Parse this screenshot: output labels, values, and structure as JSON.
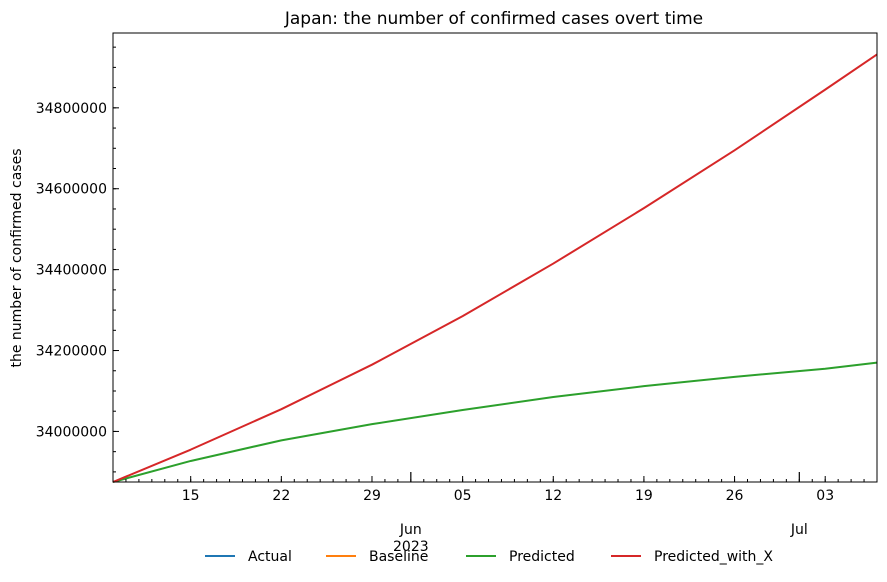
{
  "chart_data": {
    "type": "line",
    "title": "Japan: the number of confirmed cases overt time",
    "xlabel": "",
    "ylabel": "the number of confirmed cases",
    "x_range": [
      "2023-05-09",
      "2023-07-07"
    ],
    "ylim": [
      33875000,
      34985000
    ],
    "x_ticks": [
      {
        "date": "2023-05-15",
        "label": "15"
      },
      {
        "date": "2023-05-22",
        "label": "22"
      },
      {
        "date": "2023-05-29",
        "label": "29"
      },
      {
        "date": "2023-06-05",
        "label": "05"
      },
      {
        "date": "2023-06-12",
        "label": "12"
      },
      {
        "date": "2023-06-19",
        "label": "19"
      },
      {
        "date": "2023-06-26",
        "label": "26"
      },
      {
        "date": "2023-07-03",
        "label": "03"
      }
    ],
    "x_major_labels": [
      {
        "date": "2023-06-01",
        "label": "Jun",
        "sublabel": "2023"
      },
      {
        "date": "2023-07-01",
        "label": "Jul",
        "sublabel": ""
      }
    ],
    "y_ticks": [
      34000000,
      34200000,
      34400000,
      34600000,
      34800000
    ],
    "y_tick_labels": [
      "34000000",
      "34200000",
      "34400000",
      "34600000",
      "34800000"
    ],
    "legend_position": "bottom-center",
    "grid": false,
    "series": [
      {
        "name": "Actual",
        "color": "#1f77b4",
        "x": [],
        "values": []
      },
      {
        "name": "Baseline",
        "color": "#ff7f0e",
        "x": [],
        "values": []
      },
      {
        "name": "Predicted",
        "color": "#2ca02c",
        "x": [
          "2023-05-09",
          "2023-05-15",
          "2023-05-22",
          "2023-05-29",
          "2023-06-05",
          "2023-06-12",
          "2023-06-19",
          "2023-06-26",
          "2023-07-03",
          "2023-07-07"
        ],
        "values": [
          33875000,
          33927000,
          33978000,
          34018000,
          34053000,
          34085000,
          34112000,
          34135000,
          34155000,
          34170000
        ]
      },
      {
        "name": "Predicted_with_X",
        "color": "#d62728",
        "x": [
          "2023-05-09",
          "2023-05-15",
          "2023-05-22",
          "2023-05-29",
          "2023-06-05",
          "2023-06-12",
          "2023-06-19",
          "2023-06-26",
          "2023-07-03",
          "2023-07-07"
        ],
        "values": [
          33875000,
          33955000,
          34055000,
          34165000,
          34285000,
          34415000,
          34552000,
          34695000,
          34845000,
          34932000
        ]
      }
    ]
  }
}
